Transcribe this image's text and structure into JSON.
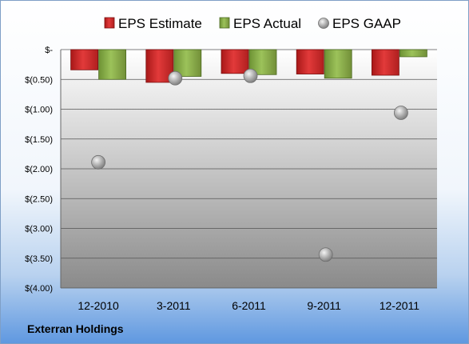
{
  "company": "Exterran Holdings",
  "colors": {
    "estimate": "#d42a2a",
    "actual": "#8ab04c",
    "gaap": "#b0b0b0"
  },
  "chart_data": {
    "type": "bar",
    "categories": [
      "12-2010",
      "3-2011",
      "6-2011",
      "9-2011",
      "12-2011"
    ],
    "series": [
      {
        "name": "EPS Estimate",
        "kind": "bar",
        "values": [
          -0.34,
          -0.55,
          -0.4,
          -0.41,
          -0.43
        ]
      },
      {
        "name": "EPS Actual",
        "kind": "bar",
        "values": [
          -0.5,
          -0.45,
          -0.42,
          -0.48,
          -0.12
        ]
      },
      {
        "name": "EPS GAAP",
        "kind": "scatter",
        "values": [
          -1.89,
          -0.48,
          -0.44,
          -3.44,
          -1.06
        ]
      }
    ],
    "ylim": [
      -4.0,
      0
    ],
    "yticks": [
      0,
      -0.5,
      -1.0,
      -1.5,
      -2.0,
      -2.5,
      -3.0,
      -3.5,
      -4.0
    ],
    "ytick_labels": [
      "$-",
      "$(0.50)",
      "$(1.00)",
      "$(1.50)",
      "$(2.00)",
      "$(2.50)",
      "$(3.00)",
      "$(3.50)",
      "$(4.00)"
    ],
    "grid": true,
    "legend_position": "top"
  }
}
